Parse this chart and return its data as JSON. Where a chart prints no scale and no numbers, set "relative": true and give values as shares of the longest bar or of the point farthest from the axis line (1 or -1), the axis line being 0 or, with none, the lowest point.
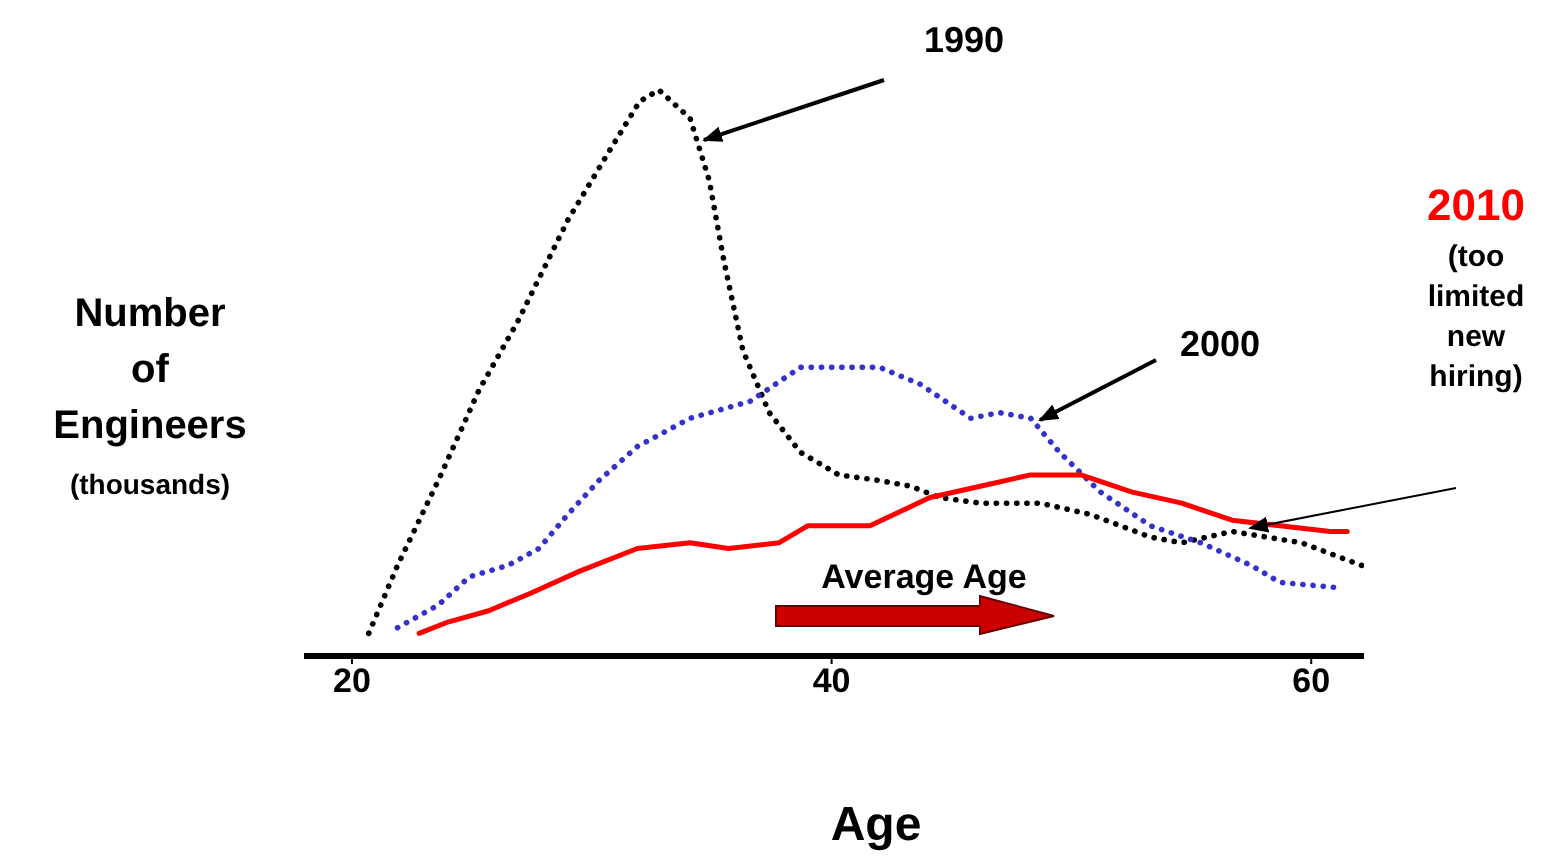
{
  "chart_data": {
    "type": "line",
    "relative": true,
    "xlabel": "Age",
    "ylabel": "Number of Engineers (thousands)",
    "xlim": [
      18,
      62.2
    ],
    "xticks": [
      20,
      40,
      60
    ],
    "grid": false,
    "legend": false,
    "marker": "none",
    "annotations": [
      "(too limited new hiring)",
      "Average Age"
    ],
    "series": [
      {
        "name": "1990",
        "color": "#000000",
        "line_style": "dotted",
        "x": [
          20.7,
          21.9,
          23.6,
          25.3,
          26.9,
          29.0,
          30.7,
          32.0,
          32.8,
          34.1,
          34.9,
          35.5,
          36.3,
          37.4,
          38.7,
          40.3,
          42.0,
          43.3,
          44.5,
          46.2,
          48.7,
          50.8,
          53.3,
          54.6,
          56.7,
          59.6,
          62.1
        ],
        "values": [
          0.04,
          0.16,
          0.31,
          0.47,
          0.59,
          0.77,
          0.89,
          0.98,
          1.0,
          0.95,
          0.84,
          0.7,
          0.54,
          0.43,
          0.36,
          0.32,
          0.31,
          0.3,
          0.28,
          0.27,
          0.27,
          0.25,
          0.21,
          0.2,
          0.22,
          0.2,
          0.16
        ]
      },
      {
        "name": "2000",
        "color": "#3333cc",
        "line_style": "dotted",
        "x": [
          21.9,
          23.6,
          24.9,
          26.5,
          27.8,
          29.0,
          30.3,
          31.9,
          34.1,
          36.6,
          38.7,
          42.0,
          43.7,
          45.8,
          47.0,
          48.3,
          49.5,
          51.2,
          53.3,
          55.4,
          57.5,
          58.7,
          61.3
        ],
        "values": [
          0.05,
          0.09,
          0.14,
          0.16,
          0.19,
          0.25,
          0.31,
          0.37,
          0.42,
          0.45,
          0.51,
          0.51,
          0.48,
          0.42,
          0.43,
          0.42,
          0.36,
          0.29,
          0.23,
          0.2,
          0.16,
          0.13,
          0.12
        ]
      },
      {
        "name": "2010",
        "color": "#ff0000",
        "line_style": "solid",
        "x": [
          22.8,
          24.0,
          25.7,
          27.4,
          29.5,
          31.9,
          34.1,
          35.7,
          37.8,
          39.0,
          41.6,
          44.1,
          46.2,
          48.3,
          50.4,
          52.5,
          54.6,
          56.7,
          58.7,
          60.8,
          61.5
        ],
        "values": [
          0.04,
          0.06,
          0.08,
          0.11,
          0.15,
          0.19,
          0.2,
          0.19,
          0.2,
          0.23,
          0.23,
          0.28,
          0.3,
          0.32,
          0.32,
          0.29,
          0.27,
          0.24,
          0.23,
          0.22,
          0.22
        ]
      }
    ]
  }
}
